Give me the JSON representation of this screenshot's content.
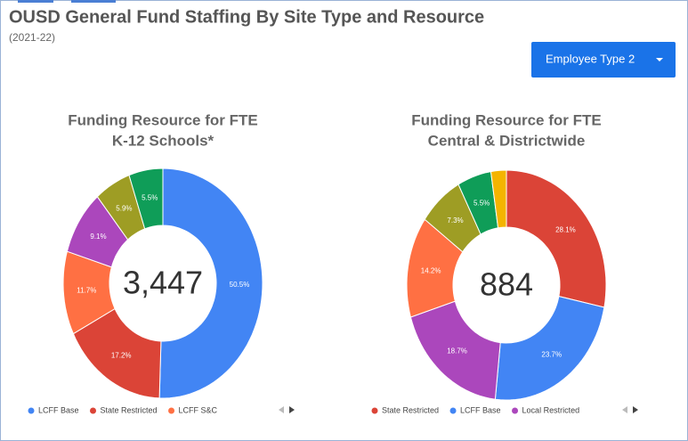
{
  "header": {
    "title": "OUSD General Fund Staffing By Site Type and Resource",
    "subtitle": "(2021-22)"
  },
  "dropdown": {
    "label": "Employee Type 2"
  },
  "chart_data": [
    {
      "type": "donut",
      "title": "Funding Resource for FTE",
      "subtitle": "K-12 Schools*",
      "categories": [
        "LCFF Base",
        "State Restricted",
        "LCFF S&C",
        null,
        null,
        null
      ],
      "values": [
        50.5,
        17.2,
        11.7,
        9.1,
        5.9,
        5.5
      ],
      "value_labels": [
        "50.5%",
        "17.2%",
        "11.7%",
        "9.1%",
        "5.9%",
        "5.5%"
      ],
      "colors": [
        "#4285f4",
        "#db4437",
        "#ff7043",
        "#ab47bc",
        "#9e9d24",
        "#0f9d58"
      ],
      "center_value": {
        "value": 3447,
        "label": "3,447"
      }
    },
    {
      "type": "donut",
      "title": "Funding Resource for FTE",
      "subtitle": "Central & Districtwide",
      "categories": [
        "State Restricted",
        "LCFF Base",
        "Local Restricted",
        null,
        null,
        null,
        null
      ],
      "values": [
        28.1,
        23.7,
        18.7,
        14.2,
        7.3,
        5.5,
        2.5
      ],
      "value_labels": [
        "28.1%",
        "23.7%",
        "18.7%",
        "14.2%",
        "7.3%",
        "5.5%",
        null
      ],
      "colors": [
        "#db4437",
        "#4285f4",
        "#ab47bc",
        "#ff7043",
        "#9e9d24",
        "#0f9d58",
        "#f4b400"
      ],
      "center_value": 884
    }
  ]
}
